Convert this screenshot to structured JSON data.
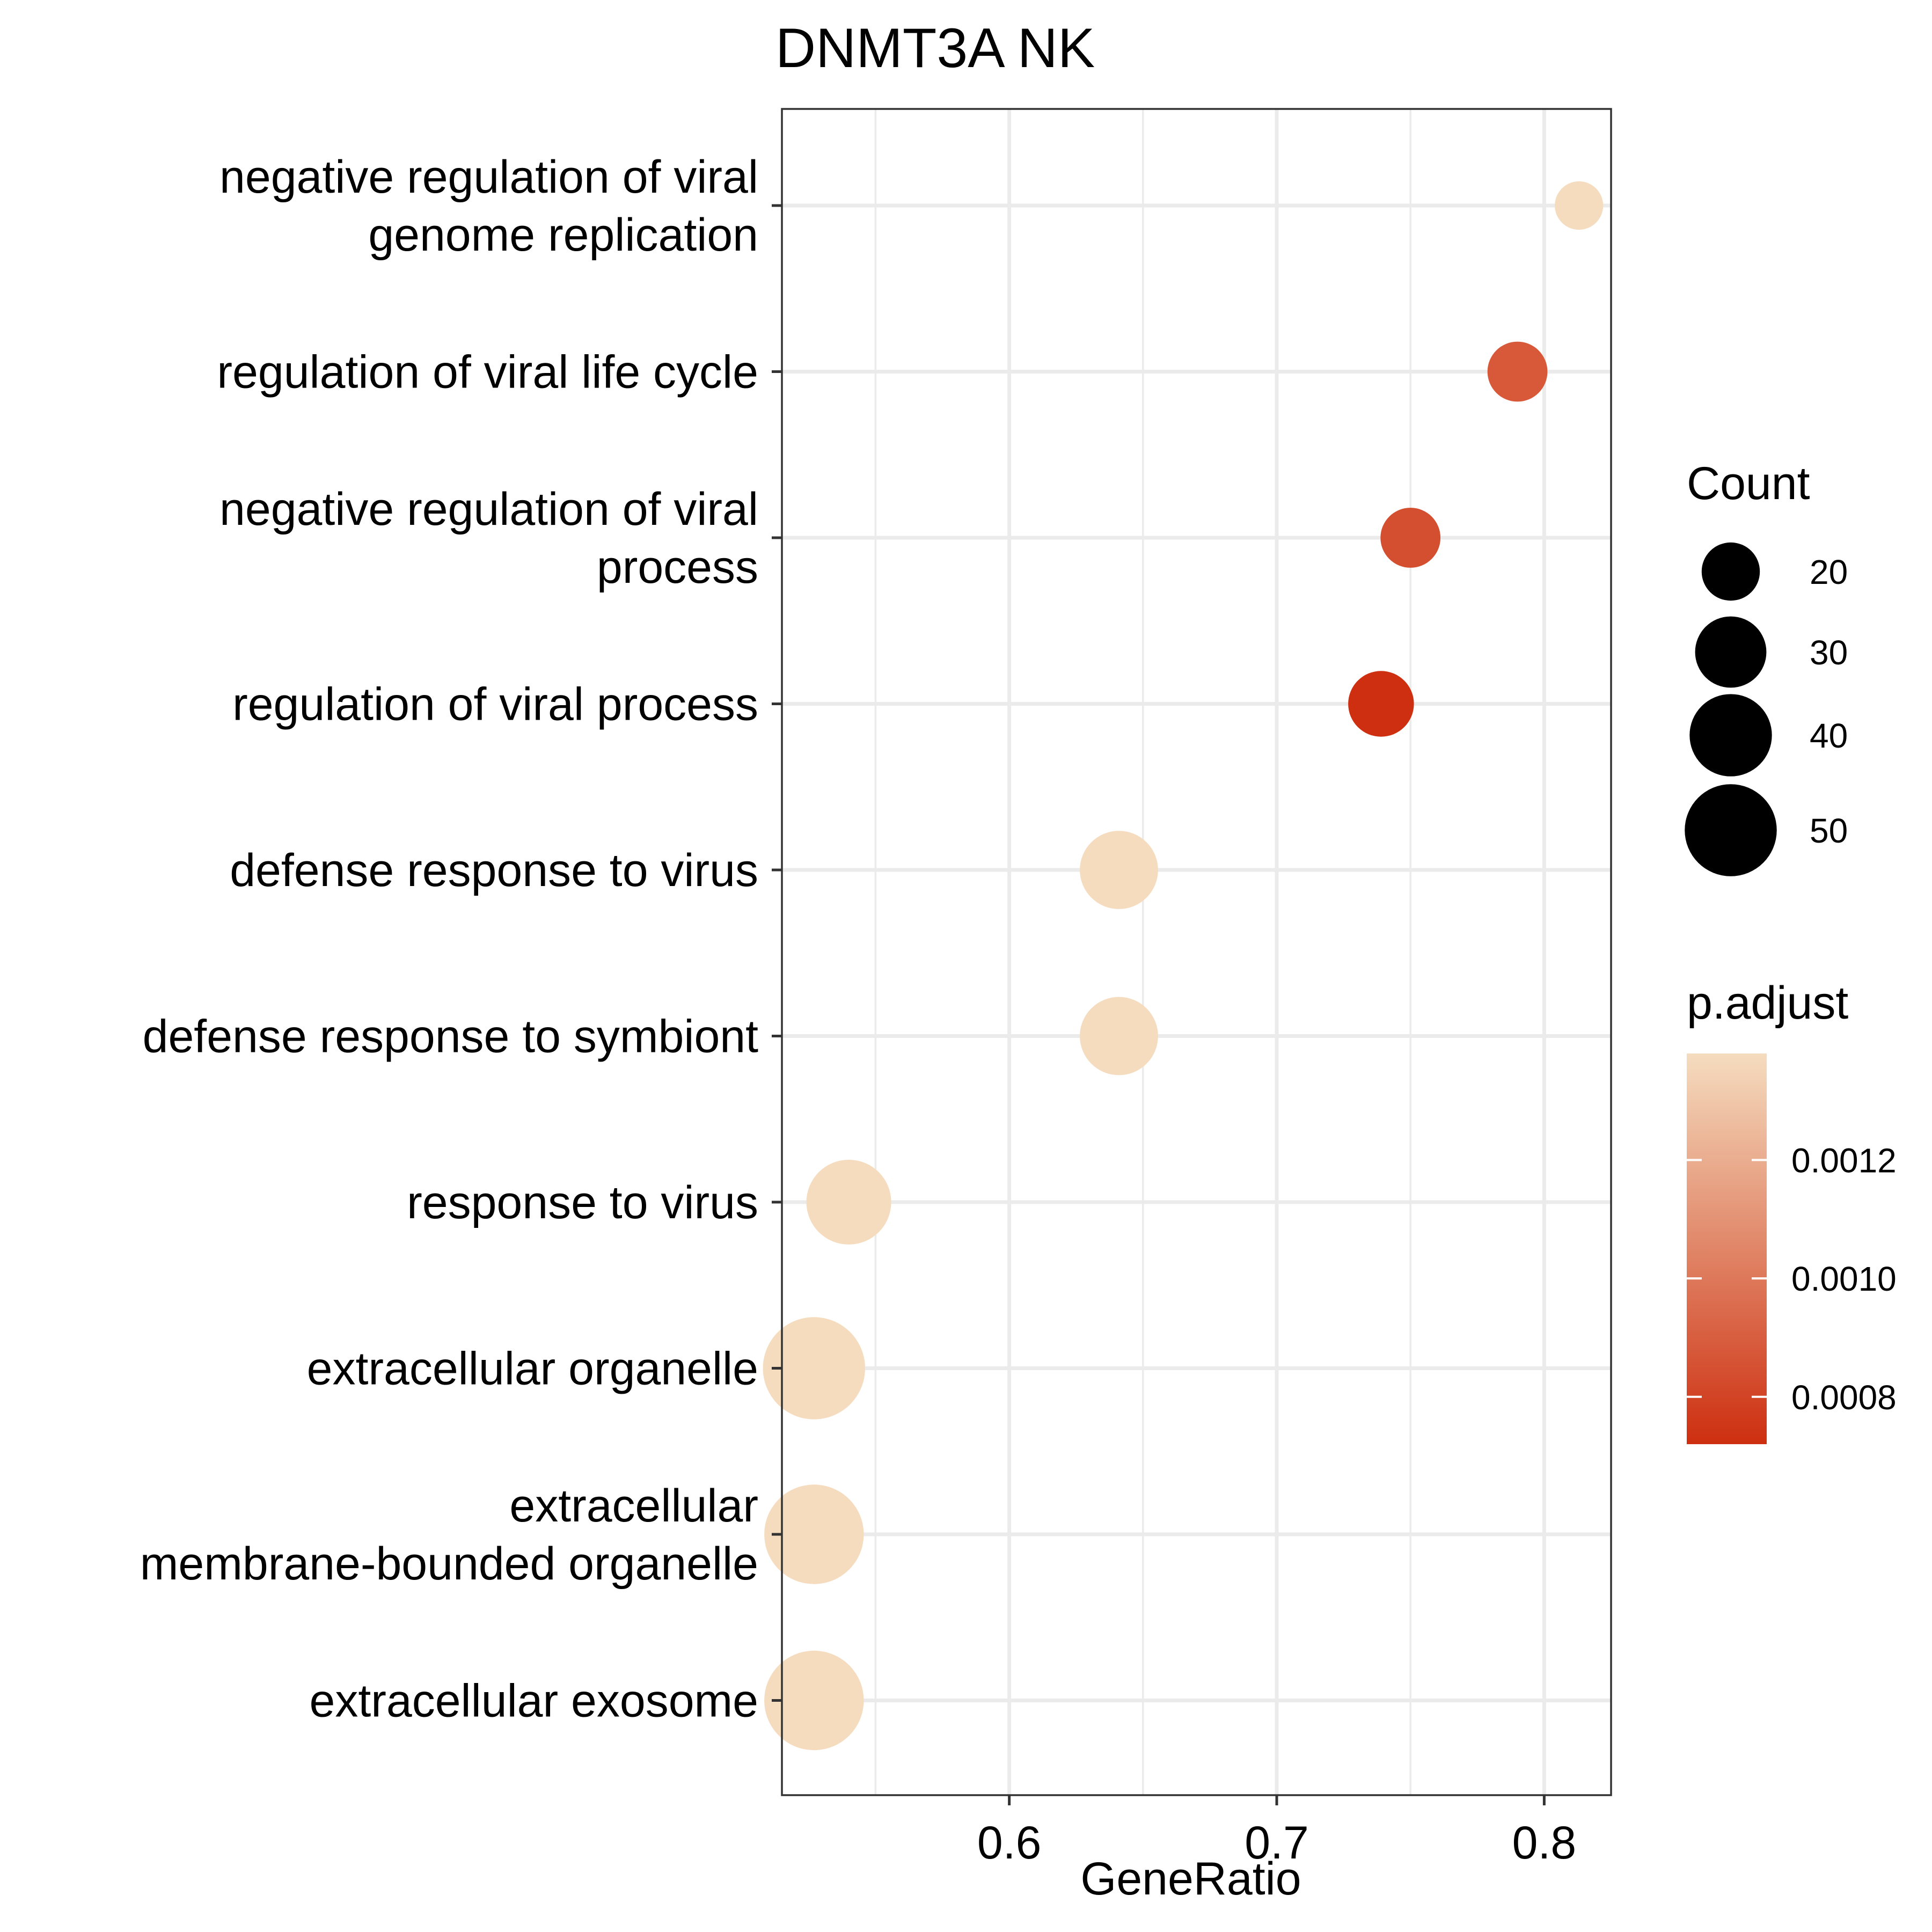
{
  "chart_data": {
    "type": "scatter",
    "title": "DNMT3A NK",
    "xlabel": "GeneRatio",
    "ylabel": "",
    "xlim": [
      0.515,
      0.825
    ],
    "x_ticks": [
      "0.6",
      "0.7",
      "0.8"
    ],
    "x_tick_values": [
      0.6,
      0.7,
      0.8
    ],
    "grid": true,
    "categories": [
      [
        "negative regulation of viral",
        "genome replication"
      ],
      [
        "regulation of viral life cycle"
      ],
      [
        "negative regulation of viral",
        "process"
      ],
      [
        "regulation of viral process"
      ],
      [
        "defense response to virus"
      ],
      [
        "defense response to symbiont"
      ],
      [
        "response to virus"
      ],
      [
        "extracellular organelle"
      ],
      [
        "extracellular",
        "membrane-bounded organelle"
      ],
      [
        "extracellular exosome"
      ]
    ],
    "points": [
      {
        "x": 0.813,
        "count": 13,
        "p_adjust": 0.00138
      },
      {
        "x": 0.79,
        "count": 20,
        "p_adjust": 0.00088
      },
      {
        "x": 0.75,
        "count": 20,
        "p_adjust": 0.00084
      },
      {
        "x": 0.739,
        "count": 24,
        "p_adjust": 0.00072
      },
      {
        "x": 0.641,
        "count": 34,
        "p_adjust": 0.00138
      },
      {
        "x": 0.641,
        "count": 34,
        "p_adjust": 0.00138
      },
      {
        "x": 0.54,
        "count": 40,
        "p_adjust": 0.00138
      },
      {
        "x": 0.527,
        "count": 58,
        "p_adjust": 0.00138
      },
      {
        "x": 0.527,
        "count": 55,
        "p_adjust": 0.00138
      },
      {
        "x": 0.527,
        "count": 55,
        "p_adjust": 0.00138
      }
    ],
    "size_legend": {
      "title": "Count",
      "entries": [
        {
          "label": "20",
          "value": 20
        },
        {
          "label": "30",
          "value": 30
        },
        {
          "label": "40",
          "value": 40
        },
        {
          "label": "50",
          "value": 50
        }
      ]
    },
    "color_legend": {
      "title": "p.adjust",
      "low_color": "#cd2f10",
      "high_color": "#f5dcbf",
      "range": [
        0.00072,
        0.00138
      ],
      "ticks": [
        {
          "label": "0.0012",
          "value": 0.0012
        },
        {
          "label": "0.0010",
          "value": 0.001
        },
        {
          "label": "0.0008",
          "value": 0.0008
        }
      ]
    },
    "legend_position": "right"
  }
}
